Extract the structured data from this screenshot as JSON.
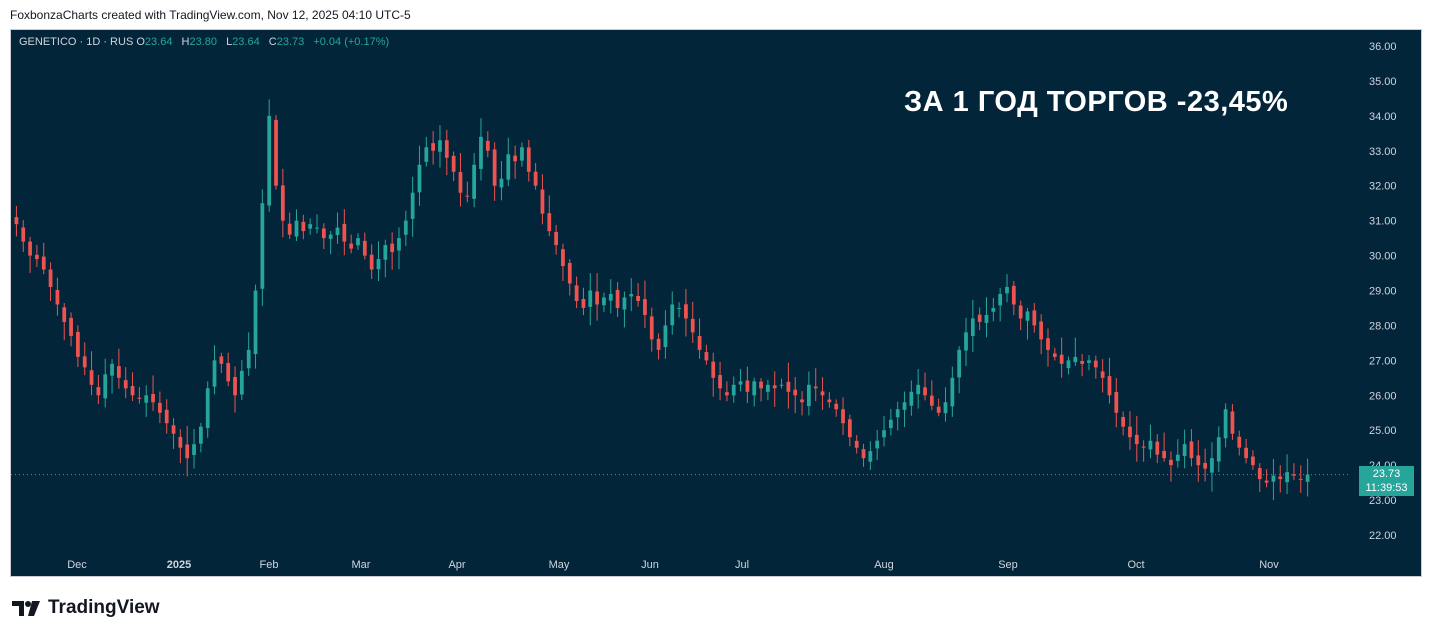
{
  "header": {
    "attribution": "FoxbonzaCharts created with TradingView.com, Nov 12, 2025 04:10 UTC-5"
  },
  "legend": {
    "symbol": "GENETICO · 1D · RUS",
    "o_label": "O",
    "o_value": "23.64",
    "h_label": "H",
    "h_value": "23.80",
    "l_label": "L",
    "l_value": "23.64",
    "c_label": "C",
    "c_value": "23.73",
    "change": "+0.04 (+0.17%)"
  },
  "overlay_text": "ЗА 1 ГОД ТОРГОВ -23,45%",
  "price_badge": {
    "price": "23.73",
    "countdown": "11:39:53"
  },
  "footer": {
    "brand": "TradingView"
  },
  "colors": {
    "background": "#03253a",
    "up": "#26a69a",
    "down": "#ef5350",
    "text": "#d1d4dc"
  },
  "chart_data": {
    "type": "candlestick",
    "ylim": [
      21.5,
      36.5
    ],
    "y_ticks": [
      "22.00",
      "23.00",
      "24.00",
      "25.00",
      "26.00",
      "27.00",
      "28.00",
      "29.00",
      "30.00",
      "31.00",
      "32.00",
      "33.00",
      "34.00",
      "35.00",
      "36.00"
    ],
    "x_ticks": [
      "Dec",
      "2025",
      "Feb",
      "Mar",
      "Apr",
      "May",
      "Jun",
      "Jul",
      "Aug",
      "Sep",
      "Oct",
      "Nov"
    ],
    "last_price": 23.73,
    "approx_closes": [
      30.9,
      30.4,
      30.0,
      29.9,
      29.6,
      29.1,
      28.6,
      28.1,
      27.7,
      27.1,
      26.8,
      26.3,
      26.0,
      26.6,
      26.9,
      26.5,
      26.2,
      26.0,
      25.9,
      26.0,
      25.8,
      25.5,
      25.2,
      24.9,
      24.5,
      24.2,
      24.6,
      25.1,
      26.2,
      27.0,
      26.9,
      26.4,
      26.0,
      26.7,
      27.3,
      29.0,
      31.5,
      34.0,
      32.0,
      31.0,
      30.6,
      31.0,
      30.7,
      30.9,
      30.8,
      30.5,
      30.6,
      30.8,
      30.4,
      30.2,
      30.5,
      30.0,
      29.6,
      29.9,
      30.3,
      30.1,
      30.5,
      31.0,
      31.8,
      32.6,
      33.1,
      33.0,
      33.3,
      32.8,
      32.4,
      31.8,
      31.7,
      32.6,
      33.4,
      33.0,
      32.0,
      32.2,
      32.9,
      32.7,
      33.1,
      32.4,
      32.0,
      31.2,
      30.7,
      30.3,
      29.7,
      29.2,
      28.7,
      28.5,
      29.0,
      28.6,
      28.8,
      28.9,
      28.5,
      28.8,
      28.9,
      28.7,
      28.3,
      27.6,
      27.3,
      28.0,
      28.6,
      28.5,
      28.2,
      27.8,
      27.3,
      27.0,
      26.5,
      26.2,
      26.0,
      26.3,
      26.4,
      26.1,
      26.4,
      26.2,
      26.3,
      26.2,
      26.3,
      26.1,
      26.0,
      25.8,
      26.3,
      26.2,
      26.0,
      25.8,
      25.6,
      25.2,
      24.8,
      24.5,
      24.2,
      24.4,
      24.7,
      25.0,
      25.3,
      25.6,
      25.8,
      26.1,
      26.3,
      26.0,
      25.7,
      25.5,
      25.8,
      26.5,
      27.3,
      27.8,
      28.2,
      28.1,
      28.3,
      28.5,
      28.9,
      29.1,
      28.6,
      28.2,
      28.4,
      28.0,
      27.6,
      27.3,
      27.1,
      26.9,
      27.0,
      27.1,
      26.9,
      27.0,
      26.8,
      26.5,
      26.0,
      25.5,
      25.1,
      24.8,
      24.6,
      24.5,
      24.7,
      24.3,
      24.2,
      24.0,
      24.3,
      24.6,
      24.2,
      24.0,
      23.9,
      24.2,
      24.8,
      25.6,
      24.9,
      24.5,
      24.2,
      24.0,
      23.6,
      23.5,
      23.7,
      23.6,
      23.8,
      23.7,
      23.6,
      23.73
    ]
  }
}
